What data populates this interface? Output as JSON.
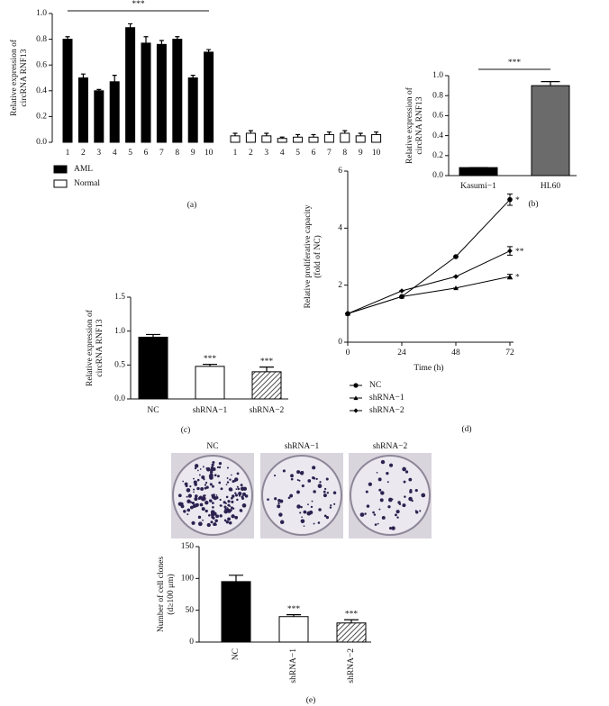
{
  "chart_data": [
    {
      "type": "bar",
      "panel": "(a)",
      "ylabel": [
        "Relative expression of",
        "circRNA RNF13"
      ],
      "categories": [
        "1",
        "2",
        "3",
        "4",
        "5",
        "6",
        "7",
        "8",
        "9",
        "10"
      ],
      "series": [
        {
          "name": "AML",
          "color": "#000000",
          "values": [
            0.8,
            0.5,
            0.4,
            0.47,
            0.89,
            0.77,
            0.76,
            0.8,
            0.5,
            0.7
          ],
          "errors": [
            0.02,
            0.03,
            0.01,
            0.05,
            0.03,
            0.05,
            0.03,
            0.02,
            0.02,
            0.02
          ]
        },
        {
          "name": "Normal",
          "color": "#ffffff",
          "values": [
            0.05,
            0.07,
            0.05,
            0.03,
            0.04,
            0.04,
            0.06,
            0.07,
            0.05,
            0.06
          ],
          "errors": [
            0.02,
            0.02,
            0.02,
            0.01,
            0.02,
            0.02,
            0.02,
            0.02,
            0.02,
            0.02
          ]
        }
      ],
      "ylim": [
        0,
        1
      ],
      "yticks": [
        {
          "value": 0,
          "label": "0.0"
        },
        0.2,
        0.4,
        0.6,
        0.8,
        {
          "value": 1,
          "label": "1.0"
        }
      ],
      "significance": "***"
    },
    {
      "type": "bar",
      "panel": "(b)",
      "ylabel": [
        "Relative expression of",
        "circRNA RNF13"
      ],
      "categories": [
        "Kasumi−1",
        "HL60"
      ],
      "values": [
        0.08,
        0.9
      ],
      "errors": [
        0,
        0.04
      ],
      "colors": [
        "#000000",
        "#6b6b6b"
      ],
      "ylim": [
        0,
        1
      ],
      "yticks": [
        {
          "value": 0,
          "label": "0.0"
        },
        0.2,
        0.4,
        0.6,
        0.8,
        {
          "value": 1,
          "label": "1.0"
        }
      ],
      "significance": "***"
    },
    {
      "type": "bar",
      "panel": "(c)",
      "ylabel": [
        "Relative expression of",
        "circRNA RNF13"
      ],
      "categories": [
        "NC",
        "shRNA−1",
        "shRNA−2"
      ],
      "values": [
        0.91,
        0.48,
        0.4
      ],
      "errors": [
        0.04,
        0.03,
        0.07
      ],
      "colors": [
        "#000000",
        "#ffffff",
        "#8a8a8a"
      ],
      "hatch": [
        false,
        false,
        true
      ],
      "annotations": [
        null,
        "***",
        "***"
      ],
      "ylim": [
        0,
        1.5
      ],
      "yticks": [
        {
          "value": 0,
          "label": "0.0"
        },
        0.5,
        {
          "value": 1,
          "label": "1.0"
        },
        1.5
      ]
    },
    {
      "type": "line",
      "panel": "(d)",
      "ylabel": [
        "Relative proliferative capacity",
        "(fold of NC)"
      ],
      "xlabel": "Time (h)",
      "x": [
        0,
        24,
        48,
        72
      ],
      "series": [
        {
          "name": "NC",
          "marker": "circle",
          "color": "#000000",
          "values": [
            1,
            1.6,
            3.0,
            5.0
          ],
          "errors": [
            0,
            0,
            0,
            0.2
          ],
          "annotation": "*"
        },
        {
          "name": "shRNA−1",
          "marker": "triangle",
          "color": "#000000",
          "values": [
            1,
            1.6,
            1.9,
            2.3
          ],
          "errors": [
            0,
            0,
            0,
            0.08
          ],
          "annotation": "*"
        },
        {
          "name": "shRNA−2",
          "marker": "diamond",
          "color": "#000000",
          "values": [
            1,
            1.8,
            2.3,
            3.2
          ],
          "errors": [
            0,
            0,
            0,
            0.15
          ],
          "annotation": "**"
        }
      ],
      "xlim": [
        0,
        72
      ],
      "xticks": [
        0,
        24,
        48,
        72
      ],
      "ylim": [
        0,
        6
      ],
      "yticks": [
        0,
        2,
        4,
        6
      ]
    },
    {
      "type": "bar",
      "panel": "(e)",
      "ylabel": [
        "Number of cell clones",
        "(d≥100 μm)"
      ],
      "categories": [
        "NC",
        "shRNA−1",
        "shRNA−2"
      ],
      "values": [
        95,
        40,
        30
      ],
      "errors": [
        10,
        3,
        5
      ],
      "colors": [
        "#000000",
        "#ffffff",
        "#8a8a8a"
      ],
      "hatch": [
        false,
        false,
        true
      ],
      "annotations": [
        null,
        "***",
        "***"
      ],
      "ylim": [
        0,
        150
      ],
      "yticks": [
        0,
        50,
        100,
        150
      ]
    }
  ]
}
